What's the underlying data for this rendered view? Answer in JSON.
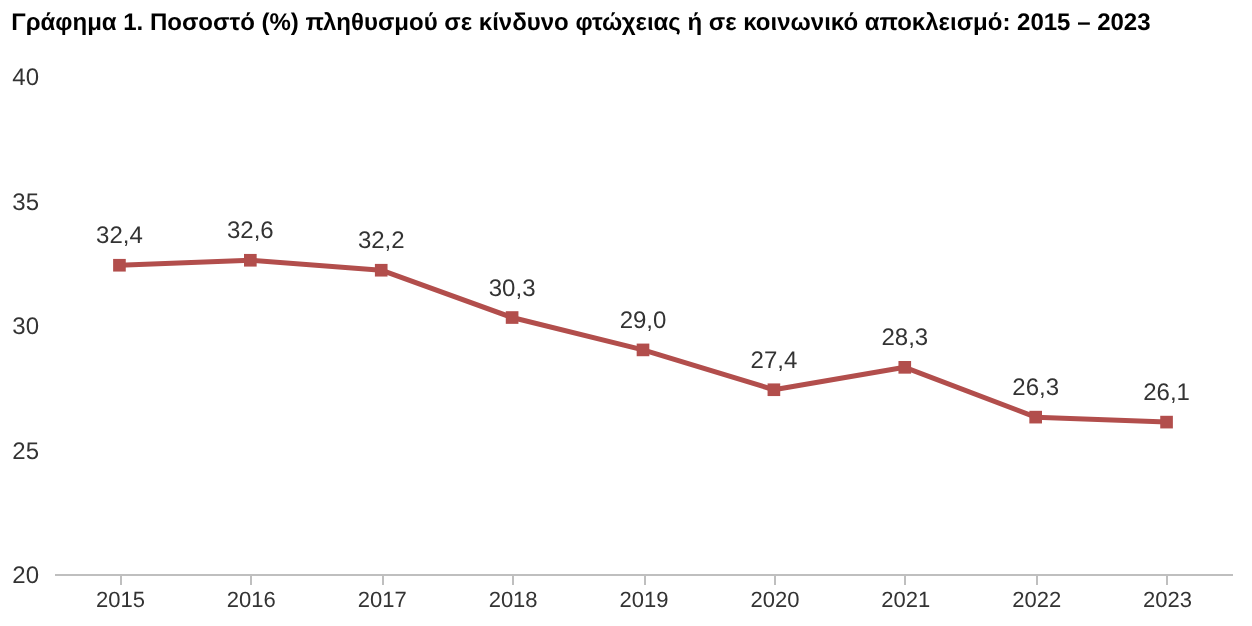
{
  "chart_data": {
    "type": "line",
    "title": "Γράφημα 1. Ποσοστό (%) πληθυσμού σε κίνδυνο φτώχειας ή σε κοινωνικό αποκλεισμό: 2015 – 2023",
    "categories": [
      "2015",
      "2016",
      "2017",
      "2018",
      "2019",
      "2020",
      "2021",
      "2022",
      "2023"
    ],
    "series": [
      {
        "color": "#b24e4c",
        "values": [
          32.4,
          32.6,
          32.2,
          30.3,
          29.0,
          27.4,
          28.3,
          26.3,
          26.1
        ],
        "value_labels": [
          "32,4",
          "32,6",
          "32,2",
          "30,3",
          "29,0",
          "27,4",
          "28,3",
          "26,3",
          "26,1"
        ]
      }
    ],
    "ylim": [
      20,
      40
    ],
    "yticks": [
      20,
      25,
      30,
      35,
      40
    ],
    "grid": false,
    "marker": "square",
    "line_style": "solid"
  }
}
